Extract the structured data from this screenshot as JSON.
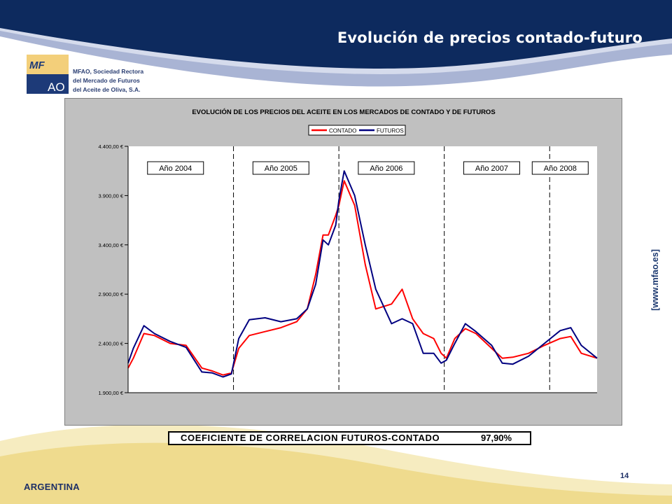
{
  "slide": {
    "title": "Evolución de precios contado-futuro",
    "url_text": "[www.mfao.es]",
    "country": "ARGENTINA",
    "page_number": "14",
    "correlation_label": "COEFICIENTE DE CORRELACION FUTUROS-CONTADO",
    "correlation_value": "97,90%"
  },
  "logo": {
    "mark_top": "MF",
    "mark_bottom": "AO",
    "line1": "MFAO, Sociedad Rectora",
    "line2": "del Mercado de Futuros",
    "line3": "del Aceite de Oliva, S.A.",
    "colors": {
      "panel": "#f3cf7a",
      "blue": "#1d3a78"
    }
  },
  "colors": {
    "header_navy": "#0d2a5e",
    "header_wave": "#a9b4d4",
    "footer_wave": "#f6ecc0",
    "contado": "#ff0000",
    "futuros": "#000080"
  },
  "chart_data": {
    "type": "line",
    "title": "EVOLUCIÓN DE LOS PRECIOS DEL ACEITE EN LOS MERCADOS DE CONTADO Y DE FUTUROS",
    "ylim": [
      1900,
      4400
    ],
    "yticks": [
      "4.400,00 €",
      "3.900,00 €",
      "3.400,00 €",
      "2.900,00 €",
      "2.400,00 €",
      "1.900,00 €"
    ],
    "ytick_values": [
      4400,
      3900,
      3400,
      2900,
      2400,
      1900
    ],
    "legend": [
      "CONTADO",
      "FUTUROS"
    ],
    "legend_position": "top-center",
    "xlim": [
      0,
      4.45
    ],
    "year_boundaries": [
      1,
      2,
      3,
      4
    ],
    "year_labels": [
      "Año 2004",
      "Año 2005",
      "Año 2006",
      "Año 2007",
      "Año 2008"
    ],
    "year_label_positions": [
      0.45,
      1.45,
      2.45,
      3.45,
      4.1
    ],
    "series": [
      {
        "name": "CONTADO",
        "x": [
          0,
          0.05,
          0.15,
          0.25,
          0.4,
          0.55,
          0.7,
          0.8,
          0.9,
          0.98,
          1.05,
          1.15,
          1.3,
          1.45,
          1.6,
          1.7,
          1.78,
          1.85,
          1.9,
          1.97,
          2.0,
          2.05,
          2.15,
          2.25,
          2.35,
          2.5,
          2.6,
          2.7,
          2.8,
          2.9,
          2.97,
          3.02,
          3.1,
          3.2,
          3.3,
          3.45,
          3.55,
          3.65,
          3.8,
          3.95,
          4.1,
          4.2,
          4.3,
          4.45
        ],
        "y": [
          2150,
          2250,
          2500,
          2480,
          2400,
          2380,
          2150,
          2120,
          2080,
          2100,
          2350,
          2480,
          2520,
          2560,
          2620,
          2750,
          3100,
          3500,
          3500,
          3700,
          3800,
          4050,
          3800,
          3200,
          2750,
          2800,
          2950,
          2650,
          2500,
          2450,
          2300,
          2250,
          2450,
          2550,
          2500,
          2350,
          2250,
          2260,
          2300,
          2380,
          2450,
          2470,
          2300,
          2250
        ]
      },
      {
        "name": "FUTUROS",
        "x": [
          0,
          0.05,
          0.15,
          0.25,
          0.4,
          0.55,
          0.7,
          0.8,
          0.9,
          0.98,
          1.05,
          1.15,
          1.3,
          1.45,
          1.6,
          1.7,
          1.78,
          1.85,
          1.9,
          1.97,
          2.0,
          2.05,
          2.15,
          2.25,
          2.35,
          2.5,
          2.6,
          2.7,
          2.8,
          2.9,
          2.97,
          3.02,
          3.1,
          3.2,
          3.3,
          3.45,
          3.55,
          3.65,
          3.8,
          3.95,
          4.1,
          4.2,
          4.3,
          4.45
        ],
        "y": [
          2200,
          2350,
          2580,
          2500,
          2420,
          2360,
          2110,
          2100,
          2060,
          2090,
          2450,
          2640,
          2660,
          2620,
          2650,
          2750,
          3000,
          3450,
          3400,
          3600,
          3850,
          4150,
          3900,
          3400,
          2950,
          2600,
          2650,
          2600,
          2300,
          2300,
          2200,
          2230,
          2400,
          2600,
          2520,
          2380,
          2200,
          2190,
          2270,
          2400,
          2530,
          2560,
          2380,
          2250
        ]
      }
    ]
  }
}
